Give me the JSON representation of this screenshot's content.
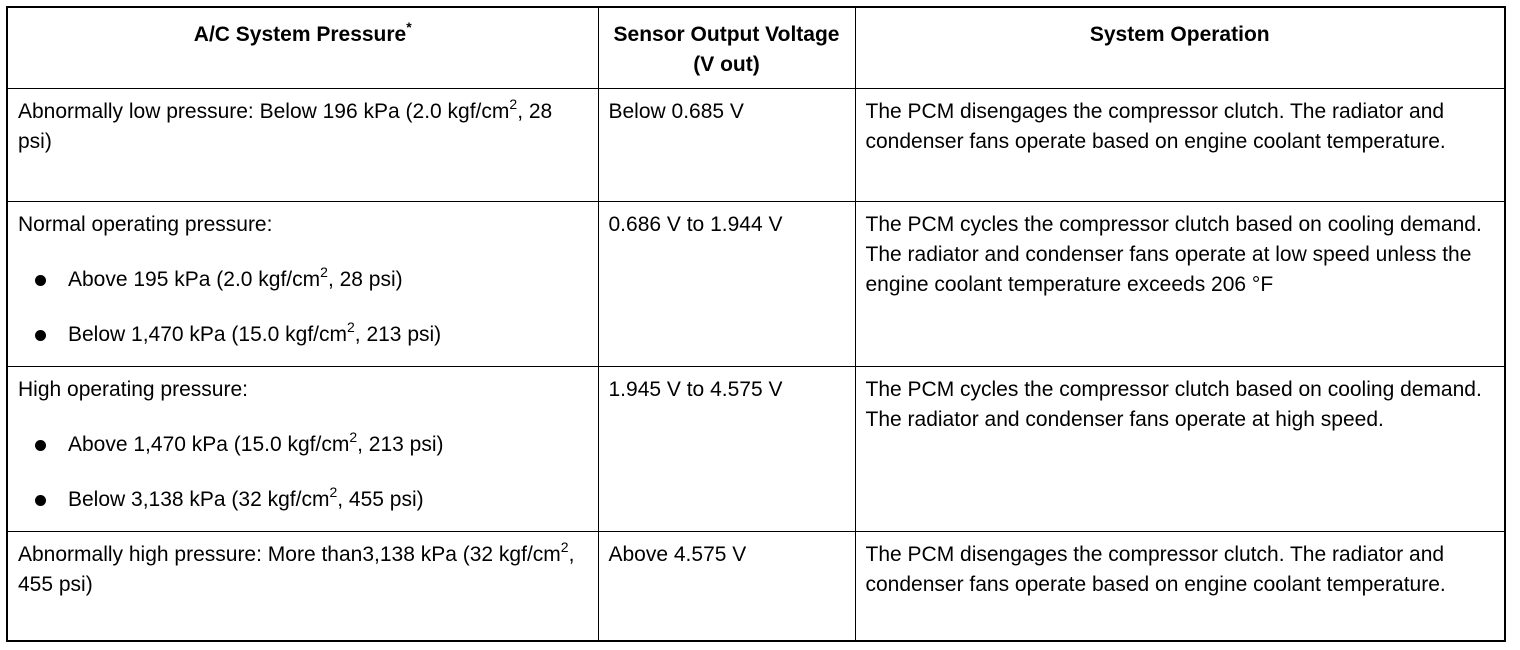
{
  "header": {
    "col1": "A/C System Pressure",
    "col1_mark": "*",
    "col2": "Sensor Output Voltage (V out)",
    "col3": "System Operation"
  },
  "rows": [
    {
      "pressure_a": "Abnormally low pressure: Below 196 kPa (2.0 kgf/cm",
      "pressure_sup": "2",
      "pressure_b": ", 28 psi)",
      "voltage": "Below 0.685 V",
      "operation": "The PCM disengages the compressor clutch. The radiator and condenser fans operate based on engine coolant temperature."
    },
    {
      "pressure": "Normal operating pressure:",
      "bullets": [
        {
          "a": "Above 195 kPa (2.0 kgf/cm",
          "sup": "2",
          "b": ", 28 psi)"
        },
        {
          "a": "Below 1,470 kPa (15.0 kgf/cm",
          "sup": "2",
          "b": ", 213 psi)"
        }
      ],
      "voltage": "0.686 V to 1.944 V",
      "operation": "The PCM cycles the compressor clutch based on cooling demand. The radiator and condenser fans operate at low speed unless the engine coolant temperature exceeds 206 °F"
    },
    {
      "pressure": "High operating pressure:",
      "bullets": [
        {
          "a": "Above 1,470 kPa (15.0 kgf/cm",
          "sup": "2",
          "b": ", 213 psi)"
        },
        {
          "a": "Below 3,138 kPa (32 kgf/cm",
          "sup": "2",
          "b": ", 455 psi)"
        }
      ],
      "voltage": "1.945 V to 4.575 V",
      "operation": "The PCM cycles the compressor clutch based on cooling demand. The radiator and condenser fans operate at high speed."
    },
    {
      "pressure_a": "Abnormally high pressure: More than3,138 kPa (32 kgf/cm",
      "pressure_sup": "2",
      "pressure_b": ", 455 psi)",
      "voltage": "Above 4.575 V",
      "operation": "The PCM disengages the compressor clutch. The radiator and condenser fans operate based on engine coolant temperature."
    }
  ]
}
